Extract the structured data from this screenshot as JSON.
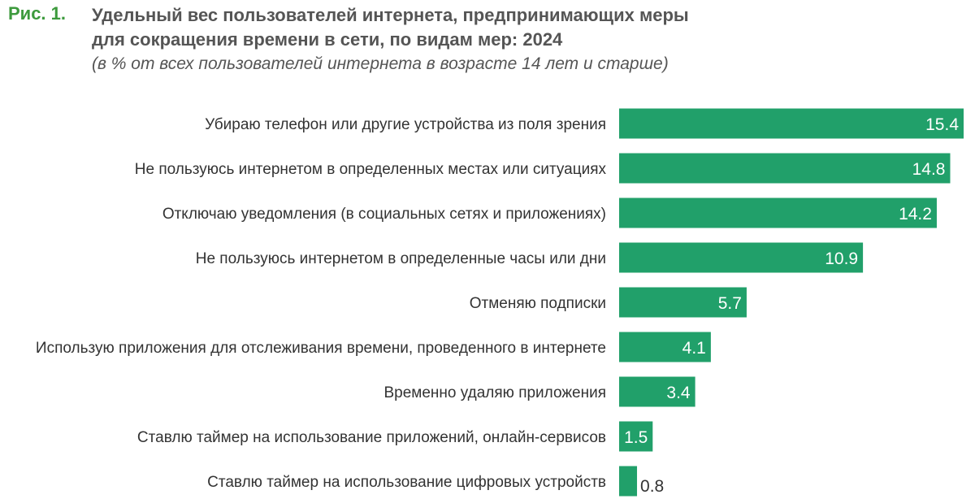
{
  "figure": {
    "label": "Рис. 1.",
    "title_line1": "Удельный вес пользователей интернета, предпринимающих меры",
    "title_line2": "для сокращения времени в сети, по видам мер: 2024",
    "subtitle": "(в % от всех пользователей интернета в возрасте 14 лет и старше)"
  },
  "colors": {
    "bar": "#21a06a",
    "label_green": "#3d9a3d",
    "text": "#333333",
    "value_inside": "#ffffff",
    "value_outside": "#333333"
  },
  "chart_data": {
    "type": "bar",
    "orientation": "horizontal",
    "categories": [
      "Убираю телефон или другие устройства из поля зрения",
      "Не пользуюсь интернетом в определенных местах или ситуациях",
      "Отключаю уведомления (в социальных сетях и приложениях)",
      "Не пользуюсь интернетом в определенные часы или дни",
      "Отменяю подписки",
      "Использую приложения для отслеживания времени, проведенного в интернете",
      "Временно удаляю приложения",
      "Ставлю таймер на использование приложений, онлайн-сервисов",
      "Ставлю таймер на использование цифровых устройств"
    ],
    "values": [
      15.4,
      14.8,
      14.2,
      10.9,
      5.7,
      4.1,
      3.4,
      1.5,
      0.8
    ],
    "value_labels": [
      "15.4",
      "14.8",
      "14.2",
      "10.9",
      "5.7",
      "4.1",
      "3.4",
      "1.5",
      "0.8"
    ],
    "xlim": [
      0,
      15.4
    ],
    "grid": false,
    "legend": "none"
  }
}
